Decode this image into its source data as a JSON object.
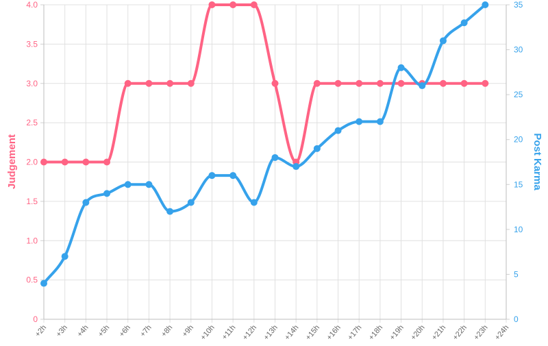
{
  "chart_data": {
    "type": "line",
    "x": [
      "+2h",
      "+3h",
      "+4h",
      "+5h",
      "+6h",
      "+7h",
      "+8h",
      "+9h",
      "+10h",
      "+11h",
      "+12h",
      "+13h",
      "+14h",
      "+15h",
      "+16h",
      "+17h",
      "+18h",
      "+19h",
      "+20h",
      "+21h",
      "+22h",
      "+23h",
      "+24h"
    ],
    "series": [
      {
        "name": "Judgement",
        "axis": "left",
        "color": "#ff6384",
        "values": [
          2.0,
          2.0,
          2.0,
          2.0,
          3.0,
          3.0,
          3.0,
          3.0,
          4.0,
          4.0,
          4.0,
          3.0,
          2.0,
          3.0,
          3.0,
          3.0,
          3.0,
          3.0,
          3.0,
          3.0,
          3.0,
          3.0,
          null
        ]
      },
      {
        "name": "Post Karma",
        "axis": "right",
        "color": "#36a2eb",
        "values": [
          4,
          7,
          13,
          14,
          15,
          15,
          12,
          13,
          16,
          16,
          13,
          18,
          17,
          19,
          21,
          22,
          22,
          28,
          26,
          31,
          33,
          35,
          null
        ]
      }
    ],
    "ylabel_left": "Judgement",
    "ylabel_right": "Post Karma",
    "ylim_left": [
      0,
      4
    ],
    "yticks_left": [
      "0",
      "0.5",
      "1.0",
      "1.5",
      "2.0",
      "2.5",
      "3.0",
      "3.5",
      "4.0"
    ],
    "ylim_right": [
      0,
      35
    ],
    "yticks_right": [
      "0",
      "5",
      "10",
      "15",
      "20",
      "25",
      "30",
      "35"
    ],
    "grid": true,
    "legend": "none"
  }
}
